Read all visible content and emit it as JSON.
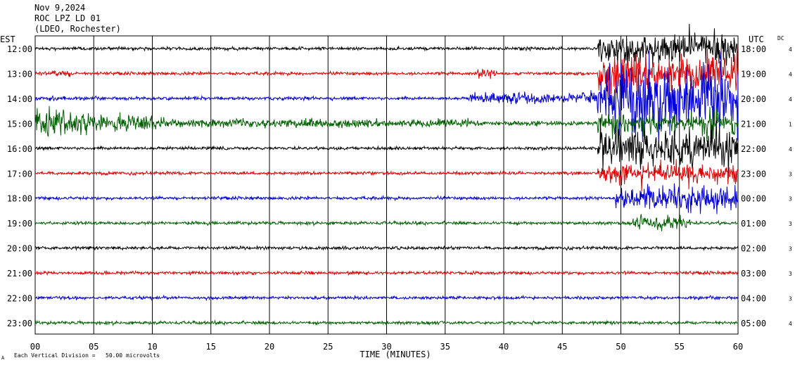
{
  "header": {
    "date": "Nov 9,2024",
    "station": "ROC LPZ LD 01",
    "network": "(LDEO, Rochester)",
    "left_tz": "EST",
    "right_tz": "UTC",
    "dc_label": "DC"
  },
  "footer": {
    "scale_note": "Each Vertical Division =   50.00 microvolts",
    "corner_mark": "A"
  },
  "chart_data": {
    "type": "line",
    "xlabel": "TIME (MINUTES)",
    "x_ticks": [
      "00",
      "05",
      "10",
      "15",
      "20",
      "25",
      "30",
      "35",
      "40",
      "45",
      "50",
      "55",
      "60"
    ],
    "xlim": [
      0,
      60
    ],
    "grid": true,
    "rows": [
      {
        "est": "12:00",
        "utc": "18:00",
        "dc": "4",
        "color": "#000000"
      },
      {
        "est": "13:00",
        "utc": "19:00",
        "dc": "4",
        "color": "#e00000"
      },
      {
        "est": "14:00",
        "utc": "20:00",
        "dc": "4",
        "color": "#0000d8"
      },
      {
        "est": "15:00",
        "utc": "21:00",
        "dc": "1",
        "color": "#006000"
      },
      {
        "est": "16:00",
        "utc": "22:00",
        "dc": "4",
        "color": "#000000"
      },
      {
        "est": "17:00",
        "utc": "23:00",
        "dc": "3",
        "color": "#e00000"
      },
      {
        "est": "18:00",
        "utc": "00:00",
        "dc": "3",
        "color": "#0000d8"
      },
      {
        "est": "19:00",
        "utc": "01:00",
        "dc": "3",
        "color": "#006000"
      },
      {
        "est": "20:00",
        "utc": "02:00",
        "dc": "3",
        "color": "#000000"
      },
      {
        "est": "21:00",
        "utc": "03:00",
        "dc": "3",
        "color": "#e00000"
      },
      {
        "est": "22:00",
        "utc": "04:00",
        "dc": "3",
        "color": "#0000d8"
      },
      {
        "est": "23:00",
        "utc": "05:00",
        "dc": "4",
        "color": "#006000"
      }
    ]
  }
}
